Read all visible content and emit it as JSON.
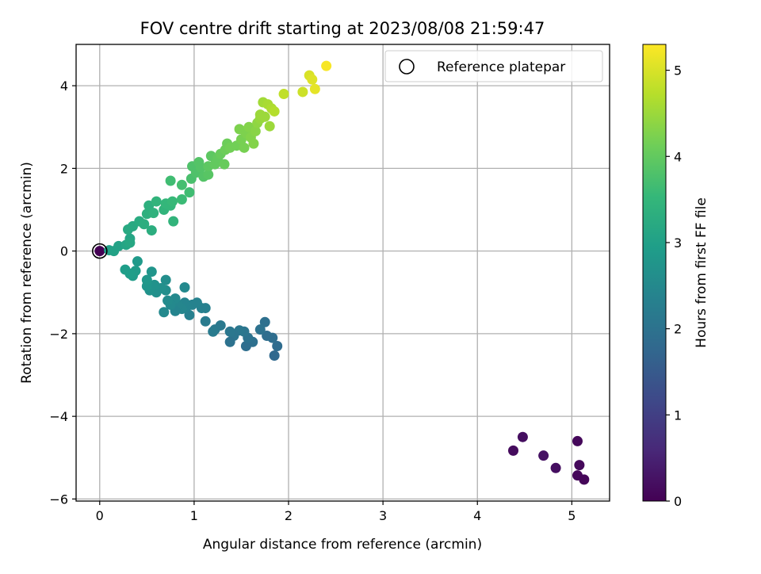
{
  "chart_data": {
    "type": "scatter",
    "title": "FOV centre drift starting at 2023/08/08 21:59:47",
    "xlabel": "Angular distance from reference (arcmin)",
    "ylabel": "Rotation from reference (arcmin)",
    "xlim": [
      -0.25,
      5.4
    ],
    "ylim": [
      -6.05,
      5.0
    ],
    "xticks": [
      0,
      1,
      2,
      3,
      4,
      5
    ],
    "yticks": [
      -6,
      -4,
      -2,
      0,
      2,
      4
    ],
    "grid": true,
    "legend": {
      "position": "top-right",
      "entries": [
        "Reference platepar"
      ]
    },
    "reference_point": {
      "x": 0,
      "y": 0,
      "label": "Reference platepar"
    },
    "colorbar": {
      "label": "Hours from first FF file",
      "min": 0,
      "max": 5.3,
      "ticks": [
        0,
        1,
        2,
        3,
        4,
        5
      ],
      "colormap": "viridis"
    },
    "points": [
      {
        "x": 0.0,
        "y": 0.0,
        "c": 0.0
      },
      {
        "x": 4.38,
        "y": -4.83,
        "c": 0.15
      },
      {
        "x": 4.48,
        "y": -4.5,
        "c": 0.2
      },
      {
        "x": 4.7,
        "y": -4.95,
        "c": 0.25
      },
      {
        "x": 4.83,
        "y": -5.25,
        "c": 0.2
      },
      {
        "x": 5.06,
        "y": -4.6,
        "c": 0.1
      },
      {
        "x": 5.08,
        "y": -5.18,
        "c": 0.12
      },
      {
        "x": 5.06,
        "y": -5.43,
        "c": 0.1
      },
      {
        "x": 5.13,
        "y": -5.53,
        "c": 0.08
      },
      {
        "x": 1.88,
        "y": -2.3,
        "c": 1.85
      },
      {
        "x": 1.85,
        "y": -2.53,
        "c": 1.8
      },
      {
        "x": 1.83,
        "y": -2.1,
        "c": 1.9
      },
      {
        "x": 1.75,
        "y": -1.72,
        "c": 1.95
      },
      {
        "x": 1.77,
        "y": -2.05,
        "c": 1.9
      },
      {
        "x": 1.7,
        "y": -1.9,
        "c": 2.0
      },
      {
        "x": 1.62,
        "y": -2.2,
        "c": 1.95
      },
      {
        "x": 1.55,
        "y": -2.3,
        "c": 1.9
      },
      {
        "x": 1.57,
        "y": -2.1,
        "c": 2.0
      },
      {
        "x": 1.53,
        "y": -1.95,
        "c": 2.05
      },
      {
        "x": 1.48,
        "y": -1.92,
        "c": 2.1
      },
      {
        "x": 1.42,
        "y": -2.05,
        "c": 2.05
      },
      {
        "x": 1.38,
        "y": -2.2,
        "c": 2.0
      },
      {
        "x": 1.38,
        "y": -1.95,
        "c": 2.1
      },
      {
        "x": 1.28,
        "y": -1.8,
        "c": 2.15
      },
      {
        "x": 1.22,
        "y": -1.9,
        "c": 2.15
      },
      {
        "x": 1.2,
        "y": -1.95,
        "c": 2.2
      },
      {
        "x": 1.12,
        "y": -1.7,
        "c": 2.2
      },
      {
        "x": 1.12,
        "y": -1.38,
        "c": 2.3
      },
      {
        "x": 1.08,
        "y": -1.38,
        "c": 2.3
      },
      {
        "x": 1.03,
        "y": -1.25,
        "c": 2.35
      },
      {
        "x": 0.98,
        "y": -1.3,
        "c": 2.35
      },
      {
        "x": 0.95,
        "y": -1.55,
        "c": 2.3
      },
      {
        "x": 0.92,
        "y": -1.35,
        "c": 2.4
      },
      {
        "x": 0.9,
        "y": -1.25,
        "c": 2.4
      },
      {
        "x": 0.9,
        "y": -0.88,
        "c": 2.5
      },
      {
        "x": 0.87,
        "y": -1.4,
        "c": 2.45
      },
      {
        "x": 0.83,
        "y": -1.3,
        "c": 2.45
      },
      {
        "x": 0.8,
        "y": -1.45,
        "c": 2.4
      },
      {
        "x": 0.8,
        "y": -1.15,
        "c": 2.5
      },
      {
        "x": 0.75,
        "y": -1.3,
        "c": 2.5
      },
      {
        "x": 0.72,
        "y": -1.2,
        "c": 2.55
      },
      {
        "x": 0.7,
        "y": -0.7,
        "c": 2.6
      },
      {
        "x": 0.7,
        "y": -0.95,
        "c": 2.6
      },
      {
        "x": 0.68,
        "y": -1.48,
        "c": 2.5
      },
      {
        "x": 0.65,
        "y": -0.9,
        "c": 2.65
      },
      {
        "x": 0.6,
        "y": -1.0,
        "c": 2.65
      },
      {
        "x": 0.58,
        "y": -0.82,
        "c": 2.7
      },
      {
        "x": 0.55,
        "y": -0.5,
        "c": 2.75
      },
      {
        "x": 0.53,
        "y": -0.95,
        "c": 2.7
      },
      {
        "x": 0.5,
        "y": -0.85,
        "c": 2.75
      },
      {
        "x": 0.5,
        "y": -0.7,
        "c": 2.8
      },
      {
        "x": 0.4,
        "y": -0.25,
        "c": 2.85
      },
      {
        "x": 0.38,
        "y": -0.48,
        "c": 2.9
      },
      {
        "x": 0.35,
        "y": -0.6,
        "c": 2.9
      },
      {
        "x": 0.32,
        "y": -0.55,
        "c": 2.95
      },
      {
        "x": 0.27,
        "y": -0.45,
        "c": 2.95
      },
      {
        "x": 0.1,
        "y": 0.02,
        "c": 3.0
      },
      {
        "x": 0.15,
        "y": 0.0,
        "c": 3.05
      },
      {
        "x": 0.2,
        "y": 0.12,
        "c": 3.05
      },
      {
        "x": 0.28,
        "y": 0.15,
        "c": 3.1
      },
      {
        "x": 0.32,
        "y": 0.3,
        "c": 3.1
      },
      {
        "x": 0.32,
        "y": 0.2,
        "c": 3.15
      },
      {
        "x": 0.3,
        "y": 0.52,
        "c": 3.2
      },
      {
        "x": 0.35,
        "y": 0.6,
        "c": 3.2
      },
      {
        "x": 0.42,
        "y": 0.72,
        "c": 3.25
      },
      {
        "x": 0.47,
        "y": 0.65,
        "c": 3.3
      },
      {
        "x": 0.5,
        "y": 0.9,
        "c": 3.35
      },
      {
        "x": 0.52,
        "y": 1.1,
        "c": 3.35
      },
      {
        "x": 0.55,
        "y": 0.5,
        "c": 3.3
      },
      {
        "x": 0.57,
        "y": 0.92,
        "c": 3.4
      },
      {
        "x": 0.6,
        "y": 1.2,
        "c": 3.45
      },
      {
        "x": 0.68,
        "y": 1.0,
        "c": 3.45
      },
      {
        "x": 0.7,
        "y": 1.15,
        "c": 3.5
      },
      {
        "x": 0.75,
        "y": 1.1,
        "c": 3.5
      },
      {
        "x": 0.77,
        "y": 1.2,
        "c": 3.55
      },
      {
        "x": 0.78,
        "y": 0.72,
        "c": 3.45
      },
      {
        "x": 0.75,
        "y": 1.7,
        "c": 3.65
      },
      {
        "x": 0.87,
        "y": 1.25,
        "c": 3.6
      },
      {
        "x": 0.87,
        "y": 1.6,
        "c": 3.7
      },
      {
        "x": 0.95,
        "y": 1.42,
        "c": 3.65
      },
      {
        "x": 0.97,
        "y": 1.75,
        "c": 3.75
      },
      {
        "x": 0.98,
        "y": 2.05,
        "c": 3.8
      },
      {
        "x": 1.02,
        "y": 1.9,
        "c": 3.8
      },
      {
        "x": 1.05,
        "y": 2.15,
        "c": 3.85
      },
      {
        "x": 1.07,
        "y": 2.02,
        "c": 3.85
      },
      {
        "x": 1.1,
        "y": 1.8,
        "c": 3.85
      },
      {
        "x": 1.15,
        "y": 1.85,
        "c": 3.9
      },
      {
        "x": 1.15,
        "y": 2.05,
        "c": 3.95
      },
      {
        "x": 1.18,
        "y": 2.3,
        "c": 3.95
      },
      {
        "x": 1.22,
        "y": 2.1,
        "c": 4.0
      },
      {
        "x": 1.25,
        "y": 2.25,
        "c": 4.0
      },
      {
        "x": 1.28,
        "y": 2.35,
        "c": 4.05
      },
      {
        "x": 1.32,
        "y": 2.1,
        "c": 4.05
      },
      {
        "x": 1.33,
        "y": 2.45,
        "c": 4.1
      },
      {
        "x": 1.35,
        "y": 2.6,
        "c": 4.1
      },
      {
        "x": 1.38,
        "y": 2.5,
        "c": 4.15
      },
      {
        "x": 1.45,
        "y": 2.55,
        "c": 4.15
      },
      {
        "x": 1.48,
        "y": 2.95,
        "c": 4.25
      },
      {
        "x": 1.5,
        "y": 2.7,
        "c": 4.2
      },
      {
        "x": 1.53,
        "y": 2.5,
        "c": 4.2
      },
      {
        "x": 1.55,
        "y": 2.85,
        "c": 4.25
      },
      {
        "x": 1.58,
        "y": 3.0,
        "c": 4.3
      },
      {
        "x": 1.6,
        "y": 2.75,
        "c": 4.3
      },
      {
        "x": 1.63,
        "y": 2.6,
        "c": 4.3
      },
      {
        "x": 1.65,
        "y": 2.9,
        "c": 4.35
      },
      {
        "x": 1.67,
        "y": 3.1,
        "c": 4.4
      },
      {
        "x": 1.7,
        "y": 3.2,
        "c": 4.45
      },
      {
        "x": 1.7,
        "y": 3.3,
        "c": 4.5
      },
      {
        "x": 1.73,
        "y": 3.6,
        "c": 4.55
      },
      {
        "x": 1.75,
        "y": 3.25,
        "c": 4.5
      },
      {
        "x": 1.78,
        "y": 3.55,
        "c": 4.6
      },
      {
        "x": 1.8,
        "y": 3.02,
        "c": 4.5
      },
      {
        "x": 1.82,
        "y": 3.45,
        "c": 4.65
      },
      {
        "x": 1.85,
        "y": 3.38,
        "c": 4.7
      },
      {
        "x": 1.95,
        "y": 3.8,
        "c": 4.8
      },
      {
        "x": 2.15,
        "y": 3.85,
        "c": 4.9
      },
      {
        "x": 2.22,
        "y": 4.25,
        "c": 5.0
      },
      {
        "x": 2.25,
        "y": 4.15,
        "c": 5.05
      },
      {
        "x": 2.28,
        "y": 3.92,
        "c": 5.1
      },
      {
        "x": 2.4,
        "y": 4.48,
        "c": 5.25
      }
    ]
  }
}
